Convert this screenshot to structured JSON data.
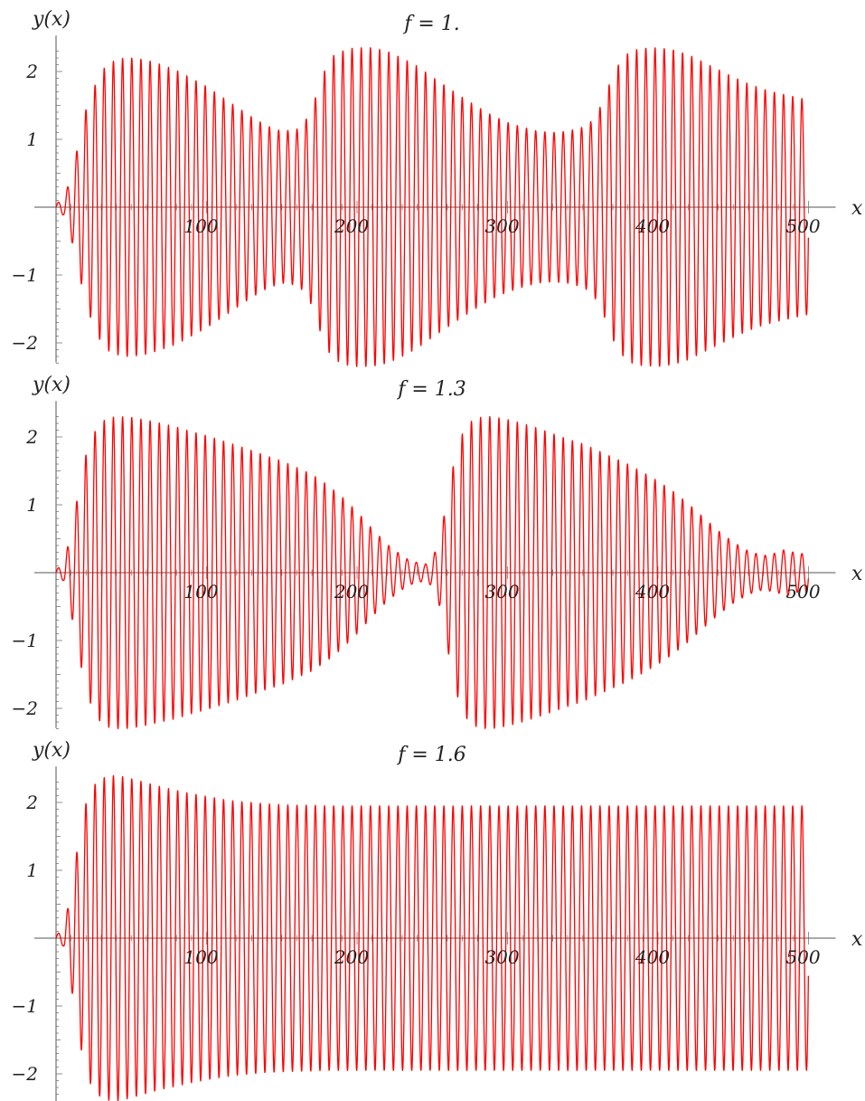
{
  "chart_data": [
    {
      "type": "line",
      "title": "f = 1.",
      "xlabel": "x",
      "ylabel": "y(x)",
      "xlim": [
        0,
        500
      ],
      "ylim": [
        -2.45,
        2.45
      ],
      "xticks": [
        "100",
        "200",
        "300",
        "400",
        "500"
      ],
      "yticks": [
        "2",
        "1",
        "−1",
        "−2"
      ],
      "grid": false,
      "legend": "none",
      "series_color": "#ff0000",
      "oscillation_period": 6.1,
      "envelope": {
        "x": [
          0,
          5,
          10,
          15,
          20,
          25,
          30,
          35,
          40,
          45,
          50,
          60,
          70,
          80,
          90,
          100,
          110,
          120,
          130,
          140,
          150,
          160,
          165,
          170,
          175,
          180,
          185,
          190,
          195,
          200,
          210,
          220,
          230,
          240,
          250,
          260,
          270,
          280,
          290,
          300,
          310,
          320,
          330,
          340,
          350,
          355,
          360,
          365,
          370,
          375,
          380,
          385,
          390,
          400,
          410,
          420,
          430,
          440,
          450,
          460,
          470,
          480,
          490,
          500
        ],
        "y": [
          0.05,
          0.12,
          0.45,
          0.95,
          1.45,
          1.75,
          2.0,
          2.12,
          2.17,
          2.2,
          2.2,
          2.17,
          2.1,
          2.02,
          1.9,
          1.78,
          1.63,
          1.48,
          1.33,
          1.2,
          1.12,
          1.15,
          1.25,
          1.45,
          1.8,
          2.1,
          2.25,
          2.3,
          2.34,
          2.35,
          2.35,
          2.3,
          2.2,
          2.08,
          1.92,
          1.77,
          1.62,
          1.48,
          1.35,
          1.25,
          1.18,
          1.12,
          1.1,
          1.12,
          1.18,
          1.25,
          1.4,
          1.65,
          1.95,
          2.15,
          2.27,
          2.32,
          2.34,
          2.35,
          2.32,
          2.25,
          2.14,
          2.03,
          1.92,
          1.82,
          1.74,
          1.68,
          1.63,
          1.58
        ]
      }
    },
    {
      "type": "line",
      "title": "f = 1.3",
      "xlabel": "x",
      "ylabel": "y(x)",
      "xlim": [
        0,
        500
      ],
      "ylim": [
        -2.45,
        2.45
      ],
      "xticks": [
        "100",
        "200",
        "300",
        "400",
        "500"
      ],
      "yticks": [
        "2",
        "1",
        "−1",
        "−2"
      ],
      "grid": false,
      "legend": "none",
      "series_color": "#ff0000",
      "oscillation_period": 6.1,
      "envelope": {
        "x": [
          0,
          5,
          10,
          15,
          20,
          25,
          30,
          35,
          40,
          45,
          50,
          60,
          70,
          80,
          90,
          100,
          110,
          120,
          130,
          140,
          150,
          160,
          170,
          180,
          190,
          200,
          210,
          220,
          230,
          235,
          240,
          245,
          250,
          255,
          260,
          265,
          270,
          275,
          280,
          285,
          290,
          300,
          310,
          320,
          330,
          340,
          350,
          360,
          370,
          380,
          390,
          400,
          410,
          420,
          430,
          440,
          450,
          460,
          470,
          480,
          485,
          490,
          495,
          500
        ],
        "y": [
          0.05,
          0.12,
          0.6,
          1.2,
          1.75,
          2.05,
          2.22,
          2.28,
          2.3,
          2.3,
          2.29,
          2.25,
          2.2,
          2.15,
          2.08,
          2.02,
          1.95,
          1.88,
          1.8,
          1.72,
          1.65,
          1.55,
          1.45,
          1.3,
          1.12,
          0.9,
          0.65,
          0.42,
          0.25,
          0.18,
          0.15,
          0.12,
          0.2,
          0.5,
          1.1,
          1.7,
          2.05,
          2.22,
          2.28,
          2.3,
          2.3,
          2.26,
          2.2,
          2.13,
          2.05,
          1.97,
          1.9,
          1.8,
          1.7,
          1.6,
          1.48,
          1.35,
          1.2,
          1.02,
          0.82,
          0.62,
          0.45,
          0.32,
          0.25,
          0.3,
          0.35,
          0.3,
          0.28,
          0.3
        ]
      }
    },
    {
      "type": "line",
      "title": "f = 1.6",
      "xlabel": "x",
      "ylabel": "y(x)",
      "xlim": [
        0,
        500
      ],
      "ylim": [
        -2.45,
        2.45
      ],
      "xticks": [
        "100",
        "200",
        "300",
        "400",
        "500"
      ],
      "yticks": [
        "2",
        "1",
        "−1",
        "−2"
      ],
      "grid": false,
      "legend": "none",
      "series_color": "#ff0000",
      "oscillation_period": 6.1,
      "envelope": {
        "x": [
          0,
          5,
          10,
          15,
          20,
          25,
          30,
          35,
          40,
          45,
          50,
          60,
          70,
          80,
          90,
          100,
          110,
          120,
          130,
          140,
          150,
          160,
          170,
          180,
          190,
          200,
          220,
          240,
          260,
          280,
          300,
          350,
          400,
          450,
          500
        ],
        "y": [
          0.05,
          0.12,
          0.7,
          1.45,
          2.0,
          2.25,
          2.35,
          2.39,
          2.4,
          2.38,
          2.35,
          2.29,
          2.23,
          2.18,
          2.13,
          2.09,
          2.05,
          2.02,
          2.0,
          1.98,
          1.97,
          1.96,
          1.96,
          1.95,
          1.95,
          1.95,
          1.95,
          1.95,
          1.95,
          1.95,
          1.95,
          1.95,
          1.95,
          1.95,
          1.95
        ]
      }
    }
  ]
}
